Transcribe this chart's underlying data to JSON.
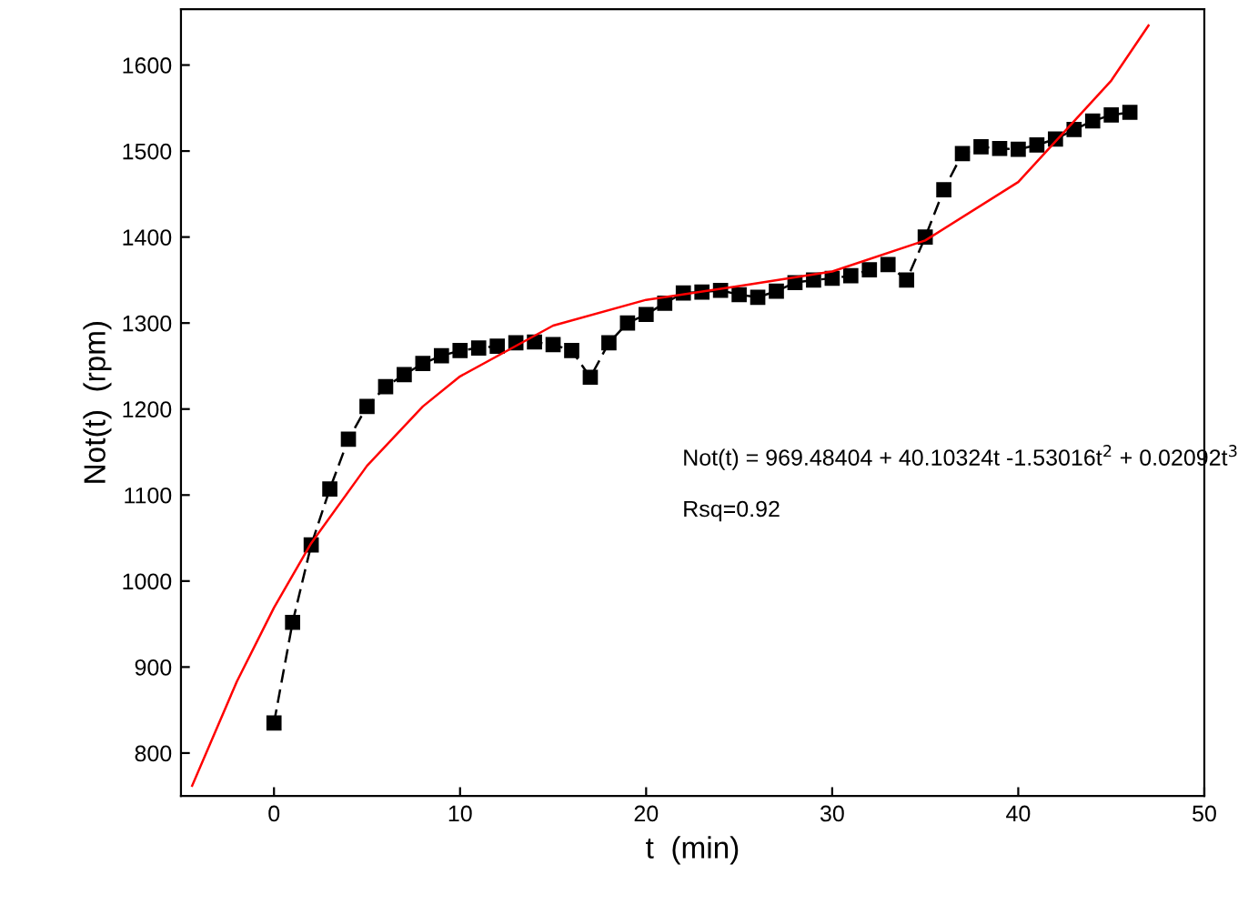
{
  "chart_data": {
    "type": "line",
    "xlabel": "t  (min)",
    "ylabel": "Not(t)  (rpm)",
    "xlim": [
      -5,
      50
    ],
    "ylim": [
      750,
      1665
    ],
    "xticks": [
      0,
      10,
      20,
      30,
      40,
      50
    ],
    "yticks": [
      800,
      900,
      1000,
      1100,
      1200,
      1300,
      1400,
      1500,
      1600
    ],
    "grid": false,
    "series": [
      {
        "color": "#000000",
        "marker": "square",
        "line_style": "dashed",
        "x": [
          0,
          1,
          2,
          3,
          4,
          5,
          6,
          7,
          8,
          9,
          10,
          11,
          12,
          13,
          14,
          15,
          16,
          17,
          18,
          19,
          20,
          21,
          22,
          23,
          24,
          25,
          26,
          27,
          28,
          29,
          30,
          31,
          32,
          33,
          34,
          35,
          36,
          37,
          38,
          39,
          40,
          41,
          42,
          43,
          44,
          45,
          46
        ],
        "values": [
          835,
          952,
          1042,
          1107,
          1165,
          1203,
          1226,
          1240,
          1253,
          1262,
          1268,
          1271,
          1273,
          1277,
          1278,
          1275,
          1268,
          1237,
          1277,
          1300,
          1310,
          1323,
          1335,
          1336,
          1338,
          1333,
          1330,
          1337,
          1347,
          1350,
          1352,
          1355,
          1362,
          1368,
          1350,
          1400,
          1455,
          1497,
          1505,
          1503,
          1502,
          1507,
          1514,
          1525,
          1535,
          1542,
          1545
        ]
      },
      {
        "color": "#ff0000",
        "marker": "none",
        "line_style": "solid",
        "x": [
          -4.4,
          -2,
          0,
          2,
          5,
          8,
          10,
          15,
          20,
          25,
          30,
          35,
          40,
          45,
          47
        ],
        "values": [
          762,
          883,
          969,
          1044,
          1134,
          1203,
          1238,
          1297,
          1327,
          1343,
          1360,
          1396,
          1464,
          1582,
          1646
        ]
      }
    ],
    "annotations": [
      "Not(t) = 969.48404 + 40.10324t -1.53016t$^{2}$ + 0.02092t$^{3}$",
      "Rsq=0.92"
    ]
  }
}
